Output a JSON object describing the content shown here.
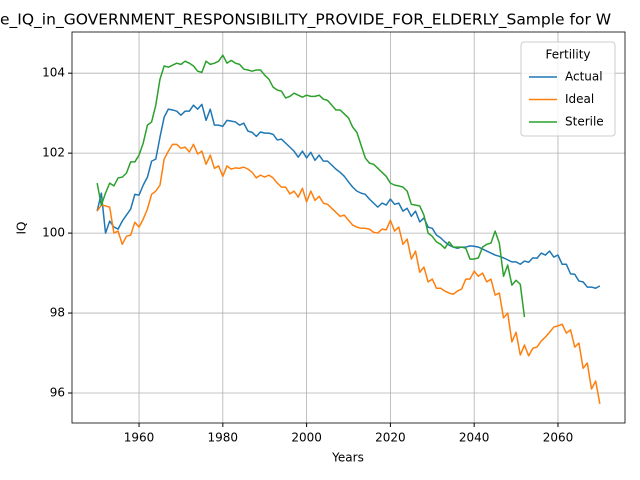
{
  "chart_data": {
    "type": "line",
    "title": "e_IQ_in_GOVERNMENT_RESPONSIBILITY_PROVIDE_FOR_ELDERLY_Sample for W",
    "xlabel": "Years",
    "ylabel": "IQ",
    "x": [
      1950,
      1951,
      1952,
      1953,
      1954,
      1955,
      1956,
      1957,
      1958,
      1959,
      1960,
      1961,
      1962,
      1963,
      1964,
      1965,
      1966,
      1967,
      1968,
      1969,
      1970,
      1971,
      1972,
      1973,
      1974,
      1975,
      1976,
      1977,
      1978,
      1979,
      1980,
      1981,
      1982,
      1983,
      1984,
      1985,
      1986,
      1987,
      1988,
      1989,
      1990,
      1991,
      1992,
      1993,
      1994,
      1995,
      1996,
      1997,
      1998,
      1999,
      2000,
      2001,
      2002,
      2003,
      2004,
      2005,
      2006,
      2007,
      2008,
      2009,
      2010,
      2011,
      2012,
      2013,
      2014,
      2015,
      2016,
      2017,
      2018,
      2019,
      2020,
      2021,
      2022,
      2023,
      2024,
      2025,
      2026,
      2027,
      2028,
      2029,
      2030,
      2031,
      2032,
      2033,
      2034,
      2035,
      2036,
      2037,
      2038,
      2039,
      2040,
      2041,
      2042,
      2043,
      2044,
      2045,
      2046,
      2047,
      2048,
      2049,
      2050,
      2051,
      2052,
      2053,
      2054,
      2055,
      2056,
      2057,
      2058,
      2059,
      2060,
      2061,
      2062,
      2063,
      2064,
      2065,
      2066,
      2067,
      2068,
      2069,
      2070
    ],
    "series": [
      {
        "name": "Actual",
        "color": "#1f77b4",
        "values": [
          100.55,
          101.0,
          100.0,
          100.3,
          100.15,
          100.1,
          100.3,
          100.45,
          100.6,
          100.97,
          100.95,
          101.2,
          101.4,
          101.8,
          101.85,
          102.4,
          102.9,
          103.1,
          103.08,
          103.05,
          102.95,
          103.05,
          103.05,
          103.2,
          103.1,
          103.22,
          102.82,
          103.1,
          102.7,
          102.7,
          102.67,
          102.82,
          102.8,
          102.78,
          102.7,
          102.75,
          102.55,
          102.52,
          102.42,
          102.53,
          102.5,
          102.5,
          102.47,
          102.33,
          102.35,
          102.25,
          102.15,
          102.05,
          101.9,
          102.05,
          101.88,
          102.02,
          101.82,
          101.95,
          101.8,
          101.8,
          101.7,
          101.6,
          101.52,
          101.42,
          101.28,
          101.15,
          101.05,
          101.0,
          100.97,
          100.85,
          100.75,
          100.65,
          100.75,
          100.7,
          100.85,
          100.72,
          100.75,
          100.55,
          100.62,
          100.42,
          100.55,
          100.28,
          100.38,
          100.15,
          100.12,
          99.95,
          99.88,
          99.78,
          99.7,
          99.65,
          99.62,
          99.65,
          99.65,
          99.68,
          99.67,
          99.65,
          99.6,
          99.55,
          99.5,
          99.45,
          99.42,
          99.38,
          99.33,
          99.28,
          99.28,
          99.22,
          99.3,
          99.27,
          99.38,
          99.37,
          99.5,
          99.45,
          99.55,
          99.4,
          99.45,
          99.22,
          99.22,
          98.98,
          98.97,
          98.8,
          98.78,
          98.65,
          98.65,
          98.62,
          98.68
        ]
      },
      {
        "name": "Ideal",
        "color": "#ff7f0e",
        "values": [
          100.55,
          100.7,
          100.68,
          100.65,
          100.0,
          100.05,
          99.72,
          99.92,
          99.95,
          100.27,
          100.15,
          100.35,
          100.6,
          100.97,
          101.05,
          101.2,
          101.85,
          102.05,
          102.22,
          102.22,
          102.12,
          102.15,
          102.03,
          102.22,
          101.98,
          102.05,
          101.72,
          101.95,
          101.62,
          101.68,
          101.42,
          101.68,
          101.6,
          101.63,
          101.62,
          101.65,
          101.6,
          101.52,
          101.38,
          101.45,
          101.4,
          101.45,
          101.38,
          101.25,
          101.15,
          101.15,
          100.98,
          101.05,
          100.9,
          101.12,
          100.78,
          101.05,
          100.82,
          100.92,
          100.75,
          100.72,
          100.62,
          100.52,
          100.42,
          100.45,
          100.32,
          100.2,
          100.15,
          100.12,
          100.12,
          100.1,
          100.02,
          100.0,
          100.1,
          100.08,
          100.32,
          100.05,
          100.15,
          99.72,
          99.85,
          99.35,
          99.55,
          99.02,
          99.15,
          98.78,
          98.85,
          98.62,
          98.62,
          98.55,
          98.5,
          98.47,
          98.55,
          98.6,
          98.85,
          98.85,
          99.05,
          98.92,
          99.0,
          98.78,
          98.85,
          98.45,
          98.5,
          97.88,
          98.0,
          97.28,
          97.52,
          96.95,
          97.2,
          96.93,
          97.12,
          97.15,
          97.3,
          97.4,
          97.52,
          97.65,
          97.68,
          97.72,
          97.5,
          97.58,
          97.15,
          97.25,
          96.62,
          96.75,
          96.1,
          96.3,
          95.73
        ]
      },
      {
        "name": "Sterile",
        "color": "#2ca02c",
        "values": [
          101.25,
          100.7,
          101.0,
          101.25,
          101.18,
          101.38,
          101.4,
          101.5,
          101.78,
          101.78,
          101.95,
          102.25,
          102.7,
          102.78,
          103.2,
          103.85,
          104.18,
          104.15,
          104.2,
          104.25,
          104.22,
          104.3,
          104.25,
          104.18,
          104.05,
          104.02,
          104.3,
          104.22,
          104.25,
          104.3,
          104.45,
          104.25,
          104.32,
          104.25,
          104.22,
          104.1,
          104.08,
          104.05,
          104.08,
          104.08,
          103.95,
          103.85,
          103.65,
          103.58,
          103.55,
          103.38,
          103.42,
          103.5,
          103.45,
          103.4,
          103.45,
          103.42,
          103.42,
          103.45,
          103.35,
          103.32,
          103.2,
          103.08,
          103.08,
          102.98,
          102.88,
          102.65,
          102.52,
          102.2,
          101.88,
          101.75,
          101.72,
          101.62,
          101.52,
          101.42,
          101.25,
          101.2,
          101.18,
          101.15,
          101.05,
          100.72,
          100.7,
          100.68,
          100.45,
          100.0,
          99.92,
          99.78,
          99.72,
          99.62,
          99.78,
          99.65,
          99.65,
          99.65,
          99.62,
          99.35,
          99.35,
          99.38,
          99.65,
          99.72,
          99.75,
          100.05,
          99.75,
          98.92,
          99.2,
          98.7,
          98.82,
          98.72,
          97.9,
          null,
          null,
          null,
          null,
          null,
          null,
          null,
          null,
          null,
          null,
          null,
          null,
          null,
          null,
          null,
          null,
          null,
          null
        ]
      }
    ],
    "legend_title": "Fertility",
    "legend": "upper right",
    "xlim": [
      1944,
      2076
    ],
    "xticks": [
      1960,
      1980,
      2000,
      2020,
      2040,
      2060
    ],
    "ylim": [
      95.25,
      105.03
    ],
    "yticks": [
      96,
      98,
      100,
      102,
      104
    ],
    "grid": true
  }
}
